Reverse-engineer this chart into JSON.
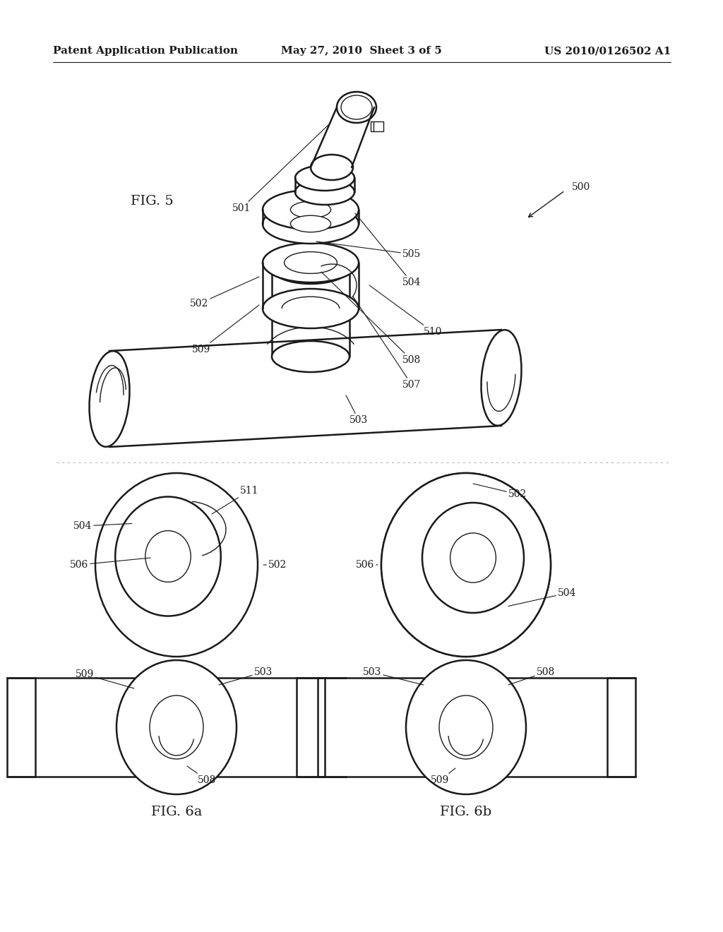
{
  "background_color": "#ffffff",
  "header_left": "Patent Application Publication",
  "header_center": "May 27, 2010  Sheet 3 of 5",
  "header_right": "US 2010/0126502 A1",
  "header_fontsize": 11,
  "fig5_label": "FIG. 5",
  "fig6a_label": "FIG. 6a",
  "fig6b_label": "FIG. 6b",
  "label_fontsize": 14,
  "ref_fontsize": 10,
  "line_color": "#1a1a1a",
  "lw_main": 1.8,
  "lw_thin": 1.0
}
